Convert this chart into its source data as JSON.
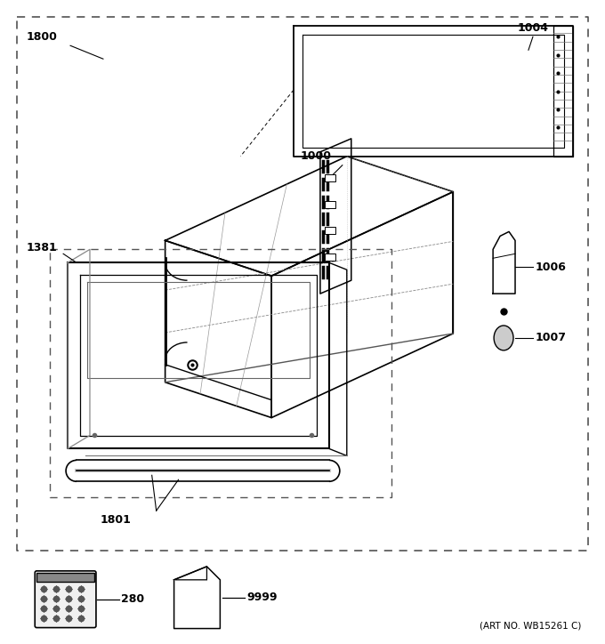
{
  "art_no": "(ART NO. WB15261 C)",
  "background_color": "#ffffff",
  "line_color": "#000000",
  "fig_width": 6.8,
  "fig_height": 7.24,
  "dpi": 100
}
